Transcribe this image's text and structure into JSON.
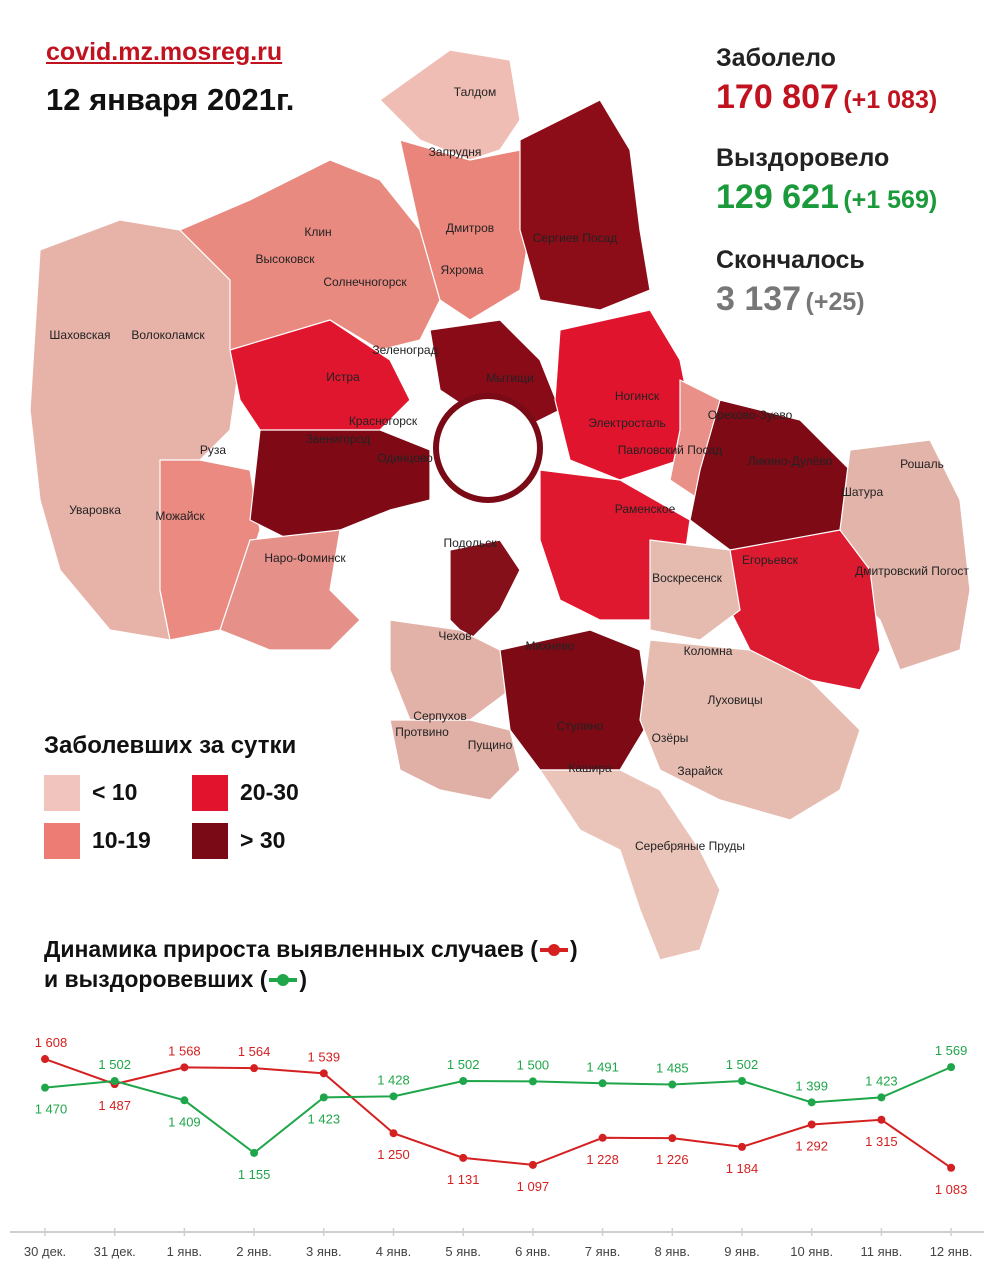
{
  "source": "covid.mz.mosreg.ru",
  "date": "12 января 2021г.",
  "stats": {
    "infected": {
      "label": "Заболело",
      "value": "170 807",
      "delta": "(+1 083)",
      "color": "#c1121f"
    },
    "recovered": {
      "label": "Выздоровело",
      "value": "129 621",
      "delta": "(+1 569)",
      "color": "#1a9a3a"
    },
    "deceased": {
      "label": "Скончалось",
      "value": "3 137",
      "delta": "(+25)",
      "color": "#777777"
    }
  },
  "map": {
    "towns": [
      "Талдом",
      "Запрудня",
      "Клин",
      "Дмитров",
      "Сергиев Посад",
      "Высоковск",
      "Яхрома",
      "Солнечногорск",
      "Шаховская",
      "Волоколамск",
      "Зеленоград",
      "Истра",
      "Мытищи",
      "Ногинск",
      "Красногорск",
      "Электросталь",
      "Орехово-Зуево",
      "Звенигород",
      "Одинцово",
      "Павловский Посад",
      "Ликино-Дулёво",
      "Руза",
      "Рошаль",
      "Уваровка",
      "Можайск",
      "Раменское",
      "Шатура",
      "Наро-Фоминск",
      "Подольск",
      "Егорьевск",
      "Воскресенск",
      "Дмитровский Погост",
      "Чехов",
      "Михнево",
      "Коломна",
      "Серпухов",
      "Луховицы",
      "Протвино",
      "Ступино",
      "Озёры",
      "Пущино",
      "Кашира",
      "Зарайск",
      "Серебряные Пруды"
    ]
  },
  "legend": {
    "title": "Заболевших за сутки",
    "items": [
      {
        "label": "< 10",
        "color": "#f2c4be"
      },
      {
        "label": "20-30",
        "color": "#e2142d"
      },
      {
        "label": "10-19",
        "color": "#ec7c74"
      },
      {
        "label": "> 30",
        "color": "#7a0a15"
      }
    ]
  },
  "dynamics": {
    "title_line1": "Динамика прироста выявленных случаев (",
    "title_line1_end": ")",
    "title_line2": "и выздоровевших (",
    "title_line2_end": ")"
  },
  "chart_data": {
    "type": "line",
    "categories": [
      "30 дек.",
      "31 дек.",
      "1 янв.",
      "2 янв.",
      "3 янв.",
      "4 янв.",
      "5 янв.",
      "6 янв.",
      "7 янв.",
      "8 янв.",
      "9 янв.",
      "10 янв.",
      "11 янв.",
      "12 янв."
    ],
    "series": [
      {
        "color": "#d42020",
        "values": [
          1608,
          1487,
          1568,
          1564,
          1539,
          1250,
          1131,
          1097,
          1228,
          1226,
          1184,
          1292,
          1315,
          1083
        ],
        "labels": [
          "1 608",
          "1 487",
          "1 568",
          "1 564",
          "1 539",
          "1 250",
          "1 131",
          "1 097",
          "1 228",
          "1 226",
          "1 184",
          "1 292",
          "1 315",
          "1 083"
        ]
      },
      {
        "color": "#1fa64a",
        "values": [
          1470,
          1502,
          1409,
          1155,
          1423,
          1428,
          1502,
          1500,
          1491,
          1485,
          1502,
          1399,
          1423,
          1569
        ],
        "labels": [
          "1 470",
          "1 502",
          "1 409",
          "1 155",
          "1 423",
          "1 428",
          "1 502",
          "1 500",
          "1 491",
          "1 485",
          "1 502",
          "1 399",
          "1 423",
          "1 569"
        ]
      }
    ],
    "ylim": [
      1000,
      1700
    ],
    "legend": "title-inline",
    "grid": false
  }
}
